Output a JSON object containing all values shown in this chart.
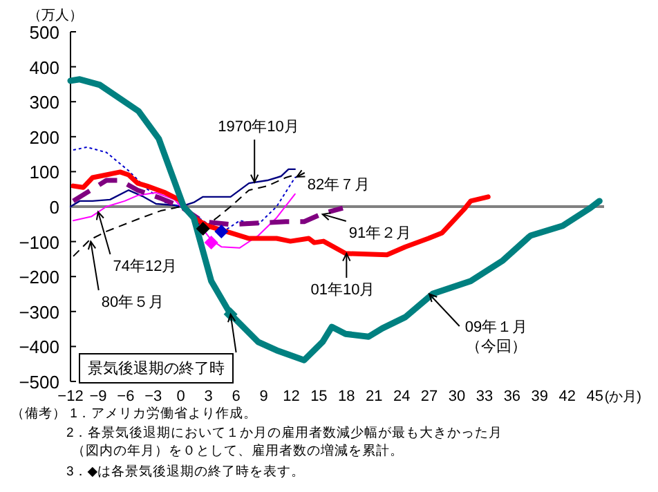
{
  "chart_data": {
    "type": "line",
    "ylabel": "（万人）",
    "xlabel": "(か月)",
    "xlim": [
      -12,
      46
    ],
    "xticks": [
      -12,
      -9,
      -6,
      -3,
      0,
      3,
      6,
      9,
      12,
      15,
      18,
      21,
      24,
      27,
      30,
      33,
      36,
      39,
      42,
      45
    ],
    "ylim": [
      -500,
      500
    ],
    "yticks": [
      -500,
      -400,
      -300,
      -200,
      -100,
      0,
      100,
      200,
      300,
      400,
      500
    ],
    "grid": false,
    "ref_lines": [
      {
        "axis": "y",
        "value": 0,
        "color": "#808080"
      }
    ],
    "series": [
      {
        "color": "#000080",
        "line_style": "solid",
        "x": [
          -12,
          -11,
          -9.6,
          -7.7,
          -5.7,
          -4.2,
          -2.7,
          -0.7,
          0,
          1.4,
          2.4,
          3.9,
          5.4,
          7.4,
          9.4,
          10.9,
          11.7,
          12.4
        ],
        "values": [
          0,
          16,
          16,
          20,
          47,
          30,
          8,
          4,
          0,
          12,
          28,
          28,
          28,
          67,
          75,
          87,
          107,
          107
        ]
      },
      {
        "color": "#0000cc",
        "line_style": "dotted",
        "x": [
          -11.7,
          -10.2,
          -8.1,
          -5.7,
          -3.7,
          -1.7,
          0,
          2.4,
          4.4,
          6.4,
          8.4,
          10.4,
          12.4,
          12.8
        ],
        "values": [
          162,
          170,
          155,
          103,
          51,
          12,
          0,
          -40,
          -75,
          -40,
          -51,
          0,
          83,
          87
        ]
      },
      {
        "color": "#ff00ff",
        "line_style": "solid",
        "x": [
          -11.7,
          -9.7,
          -8.1,
          -6.1,
          -4.7,
          -2.7,
          -0.7,
          0,
          1.4,
          3.3,
          4.4,
          6.4,
          8.4,
          10.4,
          12.4
        ],
        "values": [
          -40,
          -28,
          0,
          16,
          32,
          40,
          20,
          0,
          -32,
          -95,
          -115,
          -118,
          -83,
          -32,
          36
        ]
      },
      {
        "color": "#000000",
        "line_style": "dashed",
        "x": [
          -11.7,
          -9.9,
          -8.1,
          -4.7,
          -2.2,
          0,
          1.4,
          2.4,
          3.9,
          5.4,
          7.4,
          9.4,
          11.4,
          12.4
        ],
        "values": [
          -142,
          -95,
          -71,
          -36,
          -12,
          0,
          -32,
          -63,
          -32,
          0,
          47,
          59,
          83,
          91
        ]
      },
      {
        "color": "#800080",
        "line_style": "dashed",
        "x": [
          -11.7,
          -8.1,
          -6.6,
          -4.7,
          -2.2,
          0,
          2.4,
          5.4,
          8.4,
          11.4,
          13.4,
          15.4,
          17.6
        ],
        "values": [
          16,
          75,
          75,
          47,
          24,
          0,
          -43,
          -51,
          -47,
          -43,
          -43,
          -20,
          -4
        ]
      },
      {
        "color": "#ff0000",
        "line_style": "solid",
        "x": [
          -11.7,
          -10.6,
          -9.6,
          -8.1,
          -6.6,
          -5.7,
          -4.7,
          -3.7,
          -1.7,
          -0.2,
          1.4,
          2.9,
          5.4,
          7.4,
          10.4,
          11.9,
          13.9,
          14.5,
          15.5,
          17.9,
          22.4,
          24.4,
          26.9,
          28.4,
          30.9,
          31.5,
          33.4
        ],
        "values": [
          59,
          55,
          83,
          91,
          99,
          91,
          67,
          59,
          40,
          20,
          -32,
          -55,
          -75,
          -91,
          -91,
          -99,
          -91,
          -103,
          -99,
          -134,
          -138,
          -115,
          -91,
          -75,
          -4,
          16,
          28
        ]
      },
      {
        "color": "#008080",
        "line_style": "solid",
        "x": [
          -12,
          -11,
          -8.8,
          -4.6,
          -2.4,
          0.3,
          1.4,
          3.3,
          5.4,
          8.4,
          10.4,
          13.4,
          15.4,
          16.4,
          17.9,
          20.4,
          21.9,
          24.4,
          27.4,
          31.5,
          35,
          38,
          41.5,
          44.5,
          45.5
        ],
        "values": [
          360,
          364,
          348,
          273,
          194,
          0,
          -32,
          -213,
          -308,
          -387,
          -411,
          -439,
          -387,
          -344,
          -364,
          -372,
          -348,
          -316,
          -249,
          -213,
          -154,
          -83,
          -55,
          -4,
          16
        ]
      },
      {
        "type": "scatter",
        "marker": "diamond",
        "x": [
          5.4,
          3.3,
          4.4,
          2.4
        ],
        "values": [
          -308,
          -103,
          -71,
          -63
        ],
        "colors": [
          "#008080",
          "#ff00ff",
          "#0000cc",
          "#000000"
        ]
      }
    ],
    "annotations": [
      {
        "text": "1970年10月",
        "x": 8,
        "y": 70
      },
      {
        "text": "82年７月",
        "x": 12.6,
        "y": 85
      },
      {
        "text": "74年12月",
        "x": -9,
        "y": -15
      },
      {
        "text": "80年５月",
        "x": -9.8,
        "y": -100
      },
      {
        "text": "91年２月",
        "x": 15.4,
        "y": -22
      },
      {
        "text": "01年10月",
        "x": 18,
        "y": -134
      },
      {
        "text": "09年１月",
        "x": 27,
        "y": -250
      },
      {
        "text": "景気後退期の終了時",
        "x": 5.4,
        "y": -308
      },
      "（今回）",
      "（備考） 1．アメリカ労働省より作成。",
      "2．各景気後退期において１か月の雇用者数減少幅が最も大きかった月",
      "（図内の年月）を０として、雇用者数の増減を累計。",
      "3．◆は各景気後退期の終了時を表す。"
    ]
  }
}
